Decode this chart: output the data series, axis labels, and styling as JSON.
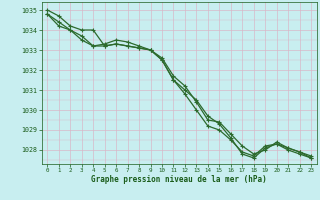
{
  "bg_color": "#c8eef0",
  "grid_color": "#d8b8c8",
  "line_color": "#2d6a2d",
  "marker_color": "#2d6a2d",
  "text_color": "#1a5c1a",
  "xlabel": "Graphe pression niveau de la mer (hPa)",
  "hours": [
    0,
    1,
    2,
    3,
    4,
    5,
    6,
    7,
    8,
    9,
    10,
    11,
    12,
    13,
    14,
    15,
    16,
    17,
    18,
    19,
    20,
    21,
    22,
    23
  ],
  "series1": [
    1035.0,
    1034.7,
    1034.2,
    1034.0,
    1034.0,
    1033.2,
    1033.3,
    1033.2,
    1033.1,
    1033.0,
    1032.5,
    1031.5,
    1031.0,
    1030.5,
    1029.7,
    1029.3,
    1028.6,
    1027.8,
    1027.6,
    1028.1,
    1028.3,
    1028.0,
    1027.8,
    1027.6
  ],
  "series2": [
    1034.8,
    1034.4,
    1034.0,
    1033.7,
    1033.2,
    1033.2,
    1033.3,
    1033.2,
    1033.1,
    1033.0,
    1032.5,
    1031.5,
    1030.8,
    1030.0,
    1029.2,
    1029.0,
    1028.5,
    1027.9,
    1027.7,
    1028.2,
    1028.3,
    1028.1,
    1027.9,
    1027.6
  ],
  "series3": [
    1034.8,
    1034.2,
    1034.0,
    1033.5,
    1033.2,
    1033.3,
    1033.5,
    1033.4,
    1033.2,
    1033.0,
    1032.6,
    1031.7,
    1031.2,
    1030.4,
    1029.5,
    1029.4,
    1028.8,
    1028.2,
    1027.8,
    1028.0,
    1028.4,
    1028.1,
    1027.9,
    1027.7
  ],
  "ylim_min": 1027.3,
  "ylim_max": 1035.4,
  "yticks": [
    1028,
    1029,
    1030,
    1031,
    1032,
    1033,
    1034,
    1035
  ]
}
